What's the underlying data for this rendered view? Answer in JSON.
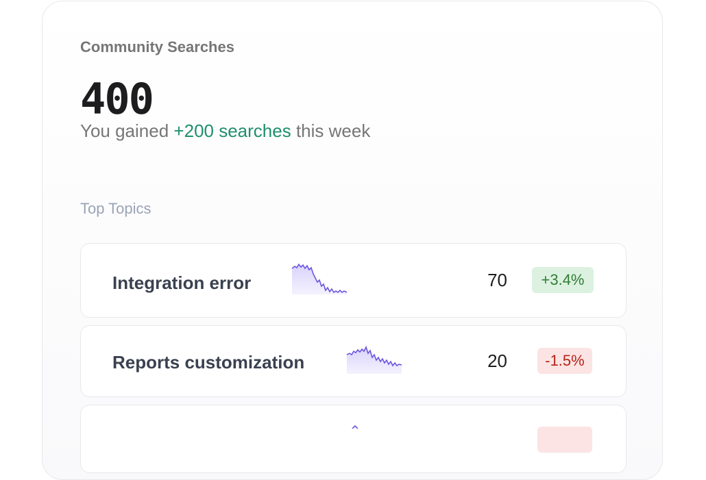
{
  "card": {
    "title": "Community Searches",
    "total": "400",
    "summary": {
      "prefix": "You gained",
      "highlight": "+200 searches",
      "suffix": "this week"
    }
  },
  "topics": {
    "title": "Top Topics",
    "rows": [
      {
        "label": "Integration error",
        "count": 70,
        "change": "+3.4%"
      },
      {
        "label": "Reports customization",
        "count": 20,
        "change": "-1.5%"
      }
    ]
  }
}
